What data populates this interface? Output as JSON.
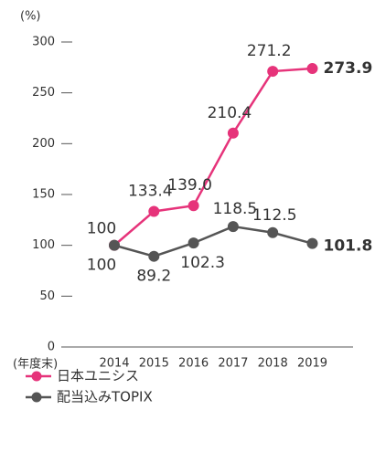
{
  "chart_data": {
    "type": "line",
    "y_axis_label": "(%)",
    "x_axis_label": "(年度末)",
    "categories": [
      "2014",
      "2015",
      "2016",
      "2017",
      "2018",
      "2019"
    ],
    "series": [
      {
        "name": "日本ユニシス",
        "color": "#e6337a",
        "values": [
          100,
          133.4,
          139.0,
          210.4,
          271.2,
          273.9
        ],
        "value_labels": [
          "100",
          "133.4",
          "139.0",
          "210.4",
          "271.2",
          "273.9"
        ]
      },
      {
        "name": "配当込みTOPIX",
        "color": "#555555",
        "values": [
          100,
          89.2,
          102.3,
          118.5,
          112.5,
          101.8
        ],
        "value_labels": [
          "100",
          "89.2",
          "102.3",
          "118.5",
          "112.5",
          "101.8"
        ]
      }
    ],
    "ylim": [
      0,
      300
    ],
    "yticks": [
      0,
      50,
      100,
      150,
      200,
      250,
      300
    ]
  }
}
